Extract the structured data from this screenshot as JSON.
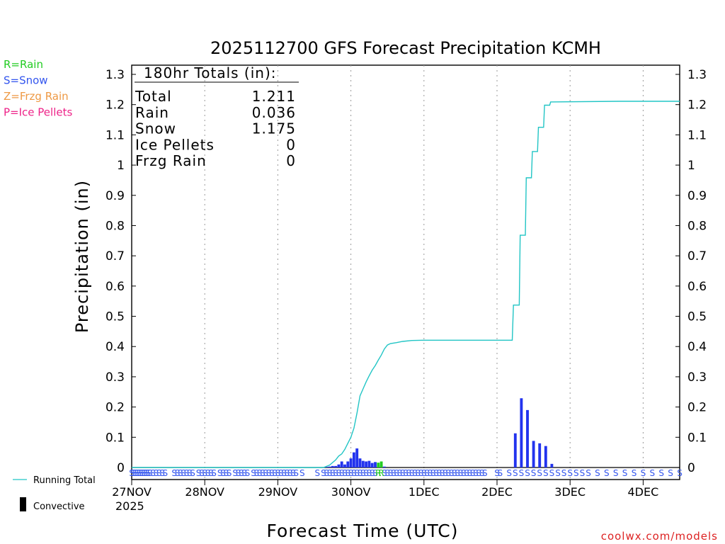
{
  "chart_data": {
    "type": "bar",
    "title": "2025112700 GFS Forecast Precipitation KCMH",
    "xlabel": "Forecast Time (UTC)",
    "ylabel": "Precipitation (in)",
    "ylim": [
      0,
      1.3
    ],
    "y_ticks": [
      "0",
      "0.1",
      "0.2",
      "0.3",
      "0.4",
      "0.5",
      "0.6",
      "0.7",
      "0.8",
      "0.9",
      "1",
      "1.1",
      "1.2",
      "1.3"
    ],
    "x_range_hours": [
      0,
      180
    ],
    "x_ticks": [
      {
        "label": "27NOV",
        "hour": 0
      },
      {
        "label": "28NOV",
        "hour": 24
      },
      {
        "label": "29NOV",
        "hour": 48
      },
      {
        "label": "30NOV",
        "hour": 72
      },
      {
        "label": "1DEC",
        "hour": 96
      },
      {
        "label": "2DEC",
        "hour": 120
      },
      {
        "label": "3DEC",
        "hour": 144
      },
      {
        "label": "4DEC",
        "hour": 168
      }
    ],
    "year_label": "2025",
    "legend_left": [
      {
        "label": "R=Rain",
        "color": "#22cc22"
      },
      {
        "label": "S=Snow",
        "color": "#3355ee"
      },
      {
        "label": "Z=Frzg Rain",
        "color": "#ee9944"
      },
      {
        "label": "P=Ice Pellets",
        "color": "#ee2288"
      }
    ],
    "legend_bottom": [
      {
        "label": "Running Total",
        "color": "#22c5c5"
      },
      {
        "label": "Convective",
        "color": "#000000"
      }
    ],
    "totals_box": {
      "header": "180hr Totals (in):",
      "rows": [
        {
          "label": "Total",
          "value": "1.211"
        },
        {
          "label": "Rain",
          "value": "0.036"
        },
        {
          "label": "Snow",
          "value": "1.175"
        },
        {
          "label": "Ice Pellets",
          "value": "0"
        },
        {
          "label": "Frzg Rain",
          "value": "0"
        }
      ]
    },
    "series": [
      {
        "name": "Snow (hourly)",
        "color": "#2233ee",
        "bar_width_hours": 0.9,
        "points": [
          [
            64,
            0.002
          ],
          [
            65,
            0.003
          ],
          [
            66,
            0.005
          ],
          [
            67,
            0.005
          ],
          [
            68,
            0.01
          ],
          [
            69,
            0.02
          ],
          [
            70,
            0.01
          ],
          [
            71,
            0.02
          ],
          [
            72,
            0.03
          ],
          [
            73,
            0.05
          ],
          [
            74,
            0.063
          ],
          [
            75,
            0.03
          ],
          [
            76,
            0.022
          ],
          [
            77,
            0.02
          ],
          [
            78,
            0.022
          ],
          [
            79,
            0.015
          ],
          [
            80,
            0.018
          ],
          [
            82,
            0.008
          ],
          [
            83,
            0.003
          ]
        ]
      },
      {
        "name": "Rain (hourly)",
        "color": "#22cc22",
        "bar_width_hours": 0.9,
        "points": [
          [
            81,
            0.016
          ],
          [
            82,
            0.02
          ]
        ]
      },
      {
        "name": "Snow (3-hourly)",
        "color": "#2233ee",
        "bar_width_hours": 0.9,
        "points": [
          [
            126,
            0.113
          ],
          [
            128,
            0.229
          ],
          [
            130,
            0.19
          ],
          [
            132,
            0.088
          ],
          [
            134,
            0.08
          ],
          [
            136,
            0.071
          ],
          [
            138,
            0.012
          ]
        ]
      },
      {
        "name": "Running Total",
        "type": "line",
        "color": "#22c5c5",
        "points": [
          [
            0,
            0
          ],
          [
            63,
            0
          ],
          [
            65,
            0.008
          ],
          [
            67,
            0.025
          ],
          [
            68,
            0.038
          ],
          [
            69,
            0.045
          ],
          [
            70,
            0.06
          ],
          [
            71,
            0.08
          ],
          [
            72,
            0.1
          ],
          [
            73,
            0.13
          ],
          [
            74,
            0.18
          ],
          [
            75,
            0.237
          ],
          [
            76,
            0.26
          ],
          [
            77,
            0.283
          ],
          [
            78,
            0.303
          ],
          [
            79,
            0.322
          ],
          [
            80,
            0.337
          ],
          [
            81,
            0.355
          ],
          [
            82,
            0.372
          ],
          [
            83,
            0.392
          ],
          [
            84,
            0.405
          ],
          [
            85,
            0.41
          ],
          [
            87,
            0.413
          ],
          [
            89,
            0.417
          ],
          [
            92,
            0.42
          ],
          [
            96,
            0.421
          ],
          [
            110,
            0.421
          ],
          [
            125,
            0.421
          ],
          [
            125.4,
            0.537
          ],
          [
            127.3,
            0.537
          ],
          [
            127.6,
            0.768
          ],
          [
            129.3,
            0.768
          ],
          [
            129.6,
            0.958
          ],
          [
            131.3,
            0.958
          ],
          [
            131.6,
            1.045
          ],
          [
            133.3,
            1.045
          ],
          [
            133.6,
            1.125
          ],
          [
            135.3,
            1.125
          ],
          [
            135.6,
            1.198
          ],
          [
            137.3,
            1.198
          ],
          [
            137.6,
            1.209
          ],
          [
            160,
            1.211
          ],
          [
            180,
            1.211
          ]
        ]
      }
    ],
    "ptype_strip": {
      "color": "#3355ee",
      "green_color": "#22cc22",
      "snow_hours": [
        0,
        0.6,
        1.2,
        1.8,
        2.4,
        3,
        3.6,
        4.2,
        4.8,
        5.4,
        6,
        7,
        8,
        9,
        10,
        11,
        14,
        15,
        16,
        17,
        18,
        19,
        20,
        22,
        23,
        24,
        25,
        26,
        27,
        29,
        30,
        31,
        32,
        34,
        35,
        36,
        37,
        38,
        40,
        41,
        42,
        43,
        44,
        45,
        46,
        47,
        48,
        49,
        50,
        51,
        52,
        53,
        54,
        56,
        61,
        63,
        64,
        65,
        66,
        67,
        68,
        69,
        70,
        71,
        72,
        73,
        74,
        75,
        76,
        77,
        78,
        79,
        80,
        83,
        84,
        85,
        86,
        87,
        88,
        89,
        90,
        91,
        92,
        93,
        94,
        95,
        96,
        97,
        98,
        99,
        100,
        101,
        102,
        103,
        104,
        105,
        106,
        107,
        108,
        109,
        110,
        111,
        112,
        113,
        114,
        115,
        116,
        120,
        121,
        124,
        126,
        128,
        130,
        132,
        134,
        136,
        138,
        140,
        142,
        144,
        146,
        148,
        150,
        153,
        156,
        159,
        162,
        165,
        168,
        171,
        174,
        177,
        180
      ],
      "rain_hours": [
        81,
        82
      ]
    },
    "footer_credit": "coolwx.com/models"
  }
}
